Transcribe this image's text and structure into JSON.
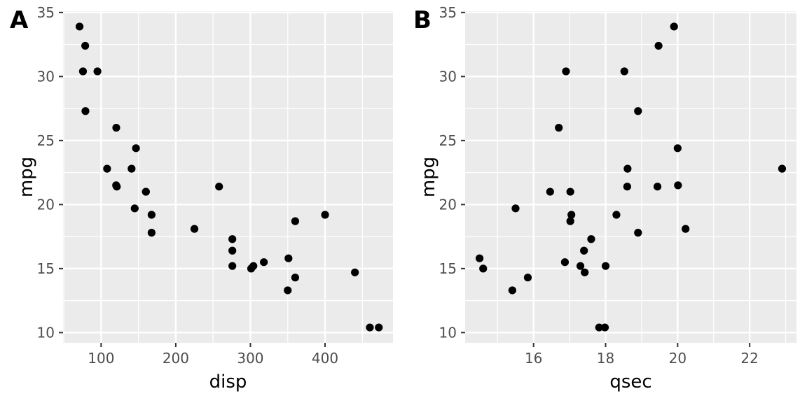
{
  "chart_data": [
    {
      "type": "scatter",
      "panel_tag": "A",
      "xlabel": "disp",
      "ylabel": "mpg",
      "xlim": [
        49.0,
        491.0
      ],
      "ylim": [
        9.2,
        35.1
      ],
      "x_ticks": [
        100,
        200,
        300,
        400
      ],
      "y_ticks": [
        10,
        15,
        20,
        25,
        30,
        35
      ],
      "grid": true,
      "background": "#ebebeb",
      "point_color": "#000000",
      "points": [
        {
          "x": 160,
          "y": 21.0
        },
        {
          "x": 160,
          "y": 21.0
        },
        {
          "x": 108,
          "y": 22.8
        },
        {
          "x": 258,
          "y": 21.4
        },
        {
          "x": 360,
          "y": 18.7
        },
        {
          "x": 225,
          "y": 18.1
        },
        {
          "x": 360,
          "y": 14.3
        },
        {
          "x": 146.7,
          "y": 24.4
        },
        {
          "x": 140.8,
          "y": 22.8
        },
        {
          "x": 167.6,
          "y": 19.2
        },
        {
          "x": 167.6,
          "y": 17.8
        },
        {
          "x": 275.8,
          "y": 16.4
        },
        {
          "x": 275.8,
          "y": 17.3
        },
        {
          "x": 275.8,
          "y": 15.2
        },
        {
          "x": 472,
          "y": 10.4
        },
        {
          "x": 460,
          "y": 10.4
        },
        {
          "x": 440,
          "y": 14.7
        },
        {
          "x": 78.7,
          "y": 32.4
        },
        {
          "x": 75.7,
          "y": 30.4
        },
        {
          "x": 71.1,
          "y": 33.9
        },
        {
          "x": 120.1,
          "y": 21.5
        },
        {
          "x": 318,
          "y": 15.5
        },
        {
          "x": 304,
          "y": 15.2
        },
        {
          "x": 350,
          "y": 13.3
        },
        {
          "x": 400,
          "y": 19.2
        },
        {
          "x": 79,
          "y": 27.3
        },
        {
          "x": 120.3,
          "y": 26.0
        },
        {
          "x": 95.1,
          "y": 30.4
        },
        {
          "x": 351,
          "y": 15.8
        },
        {
          "x": 145,
          "y": 19.7
        },
        {
          "x": 301,
          "y": 15.0
        },
        {
          "x": 121,
          "y": 21.4
        }
      ]
    },
    {
      "type": "scatter",
      "panel_tag": "B",
      "xlabel": "qsec",
      "ylabel": "mpg",
      "xlim": [
        14.1,
        23.3
      ],
      "ylim": [
        9.2,
        35.1
      ],
      "x_ticks": [
        16,
        18,
        20,
        22
      ],
      "y_ticks": [
        10,
        15,
        20,
        25,
        30,
        35
      ],
      "grid": true,
      "background": "#ebebeb",
      "point_color": "#000000",
      "points": [
        {
          "x": 16.46,
          "y": 21.0
        },
        {
          "x": 17.02,
          "y": 21.0
        },
        {
          "x": 18.61,
          "y": 22.8
        },
        {
          "x": 19.44,
          "y": 21.4
        },
        {
          "x": 17.02,
          "y": 18.7
        },
        {
          "x": 20.22,
          "y": 18.1
        },
        {
          "x": 15.84,
          "y": 14.3
        },
        {
          "x": 20.0,
          "y": 24.4
        },
        {
          "x": 22.9,
          "y": 22.8
        },
        {
          "x": 18.3,
          "y": 19.2
        },
        {
          "x": 18.9,
          "y": 17.8
        },
        {
          "x": 17.4,
          "y": 16.4
        },
        {
          "x": 17.6,
          "y": 17.3
        },
        {
          "x": 18.0,
          "y": 15.2
        },
        {
          "x": 17.98,
          "y": 10.4
        },
        {
          "x": 17.82,
          "y": 10.4
        },
        {
          "x": 17.42,
          "y": 14.7
        },
        {
          "x": 19.47,
          "y": 32.4
        },
        {
          "x": 18.52,
          "y": 30.4
        },
        {
          "x": 19.9,
          "y": 33.9
        },
        {
          "x": 20.01,
          "y": 21.5
        },
        {
          "x": 16.87,
          "y": 15.5
        },
        {
          "x": 17.3,
          "y": 15.2
        },
        {
          "x": 15.41,
          "y": 13.3
        },
        {
          "x": 17.05,
          "y": 19.2
        },
        {
          "x": 18.9,
          "y": 27.3
        },
        {
          "x": 16.7,
          "y": 26.0
        },
        {
          "x": 16.9,
          "y": 30.4
        },
        {
          "x": 14.5,
          "y": 15.8
        },
        {
          "x": 15.5,
          "y": 19.7
        },
        {
          "x": 14.6,
          "y": 15.0
        },
        {
          "x": 18.6,
          "y": 21.4
        }
      ]
    }
  ]
}
